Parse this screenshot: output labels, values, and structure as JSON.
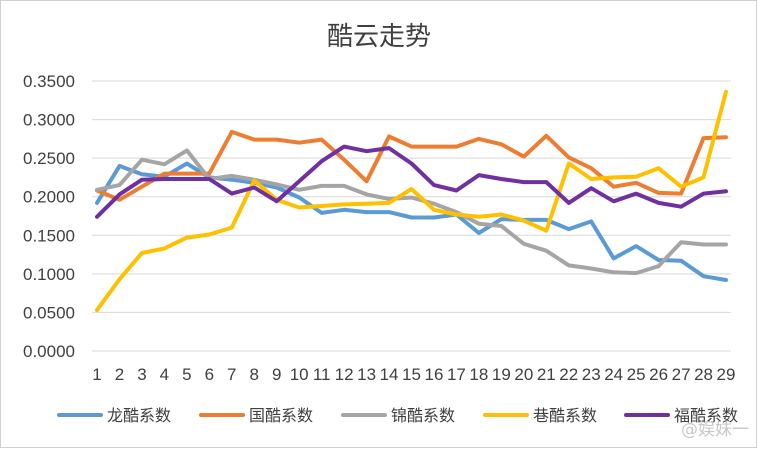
{
  "chart_data": {
    "type": "line",
    "title": "酷云走势",
    "xlabel": "",
    "ylabel": "",
    "ylim": [
      0,
      0.35
    ],
    "yticks": [
      "0.0000",
      "0.0500",
      "0.1000",
      "0.1500",
      "0.2000",
      "0.2500",
      "0.3000",
      "0.3500"
    ],
    "grid": true,
    "legend": "bottom",
    "categories": [
      "1",
      "2",
      "3",
      "4",
      "5",
      "6",
      "7",
      "8",
      "9",
      "10",
      "11",
      "12",
      "13",
      "14",
      "15",
      "16",
      "17",
      "18",
      "19",
      "20",
      "21",
      "22",
      "23",
      "24",
      "25",
      "26",
      "27",
      "28",
      "29"
    ],
    "series": [
      {
        "name": "龙酷系数",
        "color": "#5b9bd5",
        "values": [
          0.192,
          0.24,
          0.229,
          0.226,
          0.243,
          0.225,
          0.222,
          0.218,
          0.212,
          0.199,
          0.179,
          0.183,
          0.18,
          0.18,
          0.173,
          0.173,
          0.177,
          0.153,
          0.171,
          0.17,
          0.17,
          0.158,
          0.168,
          0.12,
          0.136,
          0.118,
          0.117,
          0.097,
          0.092
        ]
      },
      {
        "name": "国酷系数",
        "color": "#ed7d31",
        "values": [
          0.208,
          0.196,
          0.213,
          0.23,
          0.23,
          0.23,
          0.284,
          0.274,
          0.274,
          0.27,
          0.274,
          0.248,
          0.22,
          0.278,
          0.265,
          0.265,
          0.265,
          0.275,
          0.268,
          0.252,
          0.279,
          0.251,
          0.237,
          0.213,
          0.218,
          0.205,
          0.204,
          0.276,
          0.277
        ]
      },
      {
        "name": "锦酷系数",
        "color": "#a5a5a5",
        "values": [
          0.209,
          0.215,
          0.248,
          0.242,
          0.26,
          0.223,
          0.227,
          0.222,
          0.216,
          0.209,
          0.214,
          0.214,
          0.203,
          0.197,
          0.199,
          0.191,
          0.18,
          0.165,
          0.162,
          0.139,
          0.13,
          0.111,
          0.107,
          0.102,
          0.101,
          0.11,
          0.141,
          0.138,
          0.138
        ]
      },
      {
        "name": "巷酷系数",
        "color": "#ffc000",
        "values": [
          0.053,
          0.093,
          0.127,
          0.133,
          0.147,
          0.151,
          0.16,
          0.221,
          0.196,
          0.186,
          0.188,
          0.19,
          0.191,
          0.192,
          0.21,
          0.183,
          0.177,
          0.174,
          0.177,
          0.169,
          0.156,
          0.243,
          0.223,
          0.225,
          0.226,
          0.237,
          0.213,
          0.225,
          0.336
        ]
      },
      {
        "name": "福酷系数",
        "color": "#7030a0",
        "values": [
          0.174,
          0.203,
          0.222,
          0.223,
          0.223,
          0.223,
          0.204,
          0.212,
          0.194,
          0.22,
          0.246,
          0.265,
          0.259,
          0.263,
          0.243,
          0.215,
          0.208,
          0.228,
          0.223,
          0.219,
          0.219,
          0.192,
          0.211,
          0.194,
          0.204,
          0.192,
          0.187,
          0.204,
          0.207
        ]
      }
    ]
  },
  "watermark": "@娱妹一"
}
